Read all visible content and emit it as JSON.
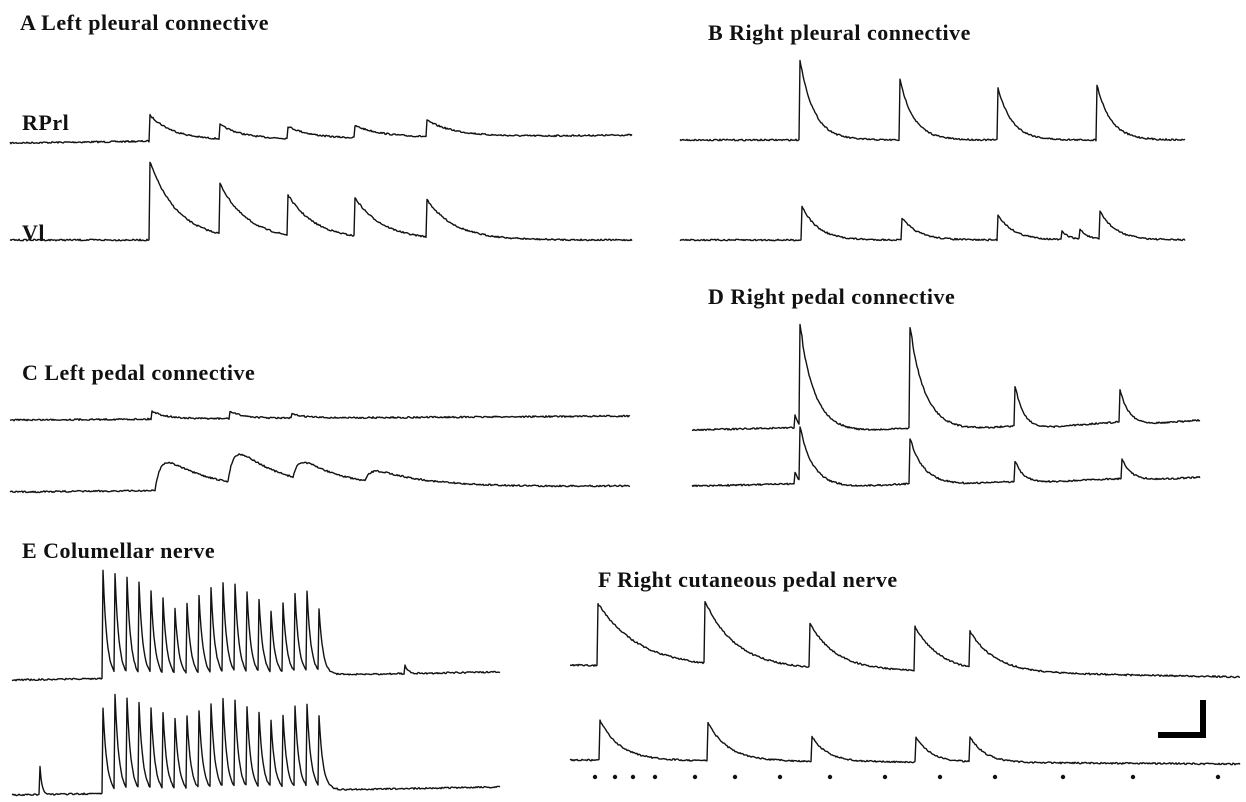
{
  "panels": [
    {
      "title": "A Left pleural connective",
      "trace_labels": [
        "RPrl",
        "Vl"
      ]
    },
    {
      "title": "B Right pleural connective"
    },
    {
      "title": "C Left pedal connective"
    },
    {
      "title": "D Right pedal connective"
    },
    {
      "title": "E Columellar nerve"
    },
    {
      "title": "F Right cutaneous pedal nerve"
    }
  ]
}
